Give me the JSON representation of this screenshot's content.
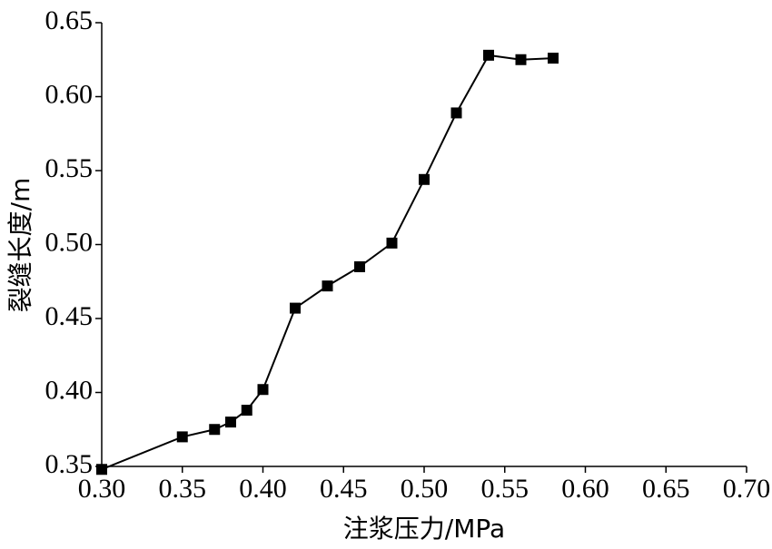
{
  "chart_data": {
    "type": "line",
    "x_label": "注浆压力/MPa",
    "y_label": "裂缝长度/m",
    "x": [
      0.3,
      0.35,
      0.37,
      0.38,
      0.39,
      0.4,
      0.42,
      0.44,
      0.46,
      0.48,
      0.5,
      0.52,
      0.54,
      0.56,
      0.58
    ],
    "values": [
      0.348,
      0.37,
      0.375,
      0.38,
      0.388,
      0.402,
      0.457,
      0.472,
      0.485,
      0.501,
      0.544,
      0.589,
      0.628,
      0.625,
      0.626
    ],
    "color": "#000000",
    "marker": "square",
    "xlim": [
      0.3,
      0.7
    ],
    "xticks": [
      {
        "value": 0.3,
        "label": "0.30"
      },
      0.35,
      {
        "value": 0.4,
        "label": "0.40"
      },
      0.45,
      {
        "value": 0.5,
        "label": "0.50"
      },
      0.55,
      {
        "value": 0.6,
        "label": "0.60"
      },
      0.65,
      {
        "value": 0.7,
        "label": "0.70"
      }
    ],
    "ylim": [
      0.35,
      0.65
    ],
    "yticks": [
      0.35,
      {
        "value": 0.4,
        "label": "0.40"
      },
      0.45,
      {
        "value": 0.5,
        "label": "0.50"
      },
      0.55,
      {
        "value": 0.6,
        "label": "0.60"
      },
      0.65
    ],
    "grid": false
  }
}
